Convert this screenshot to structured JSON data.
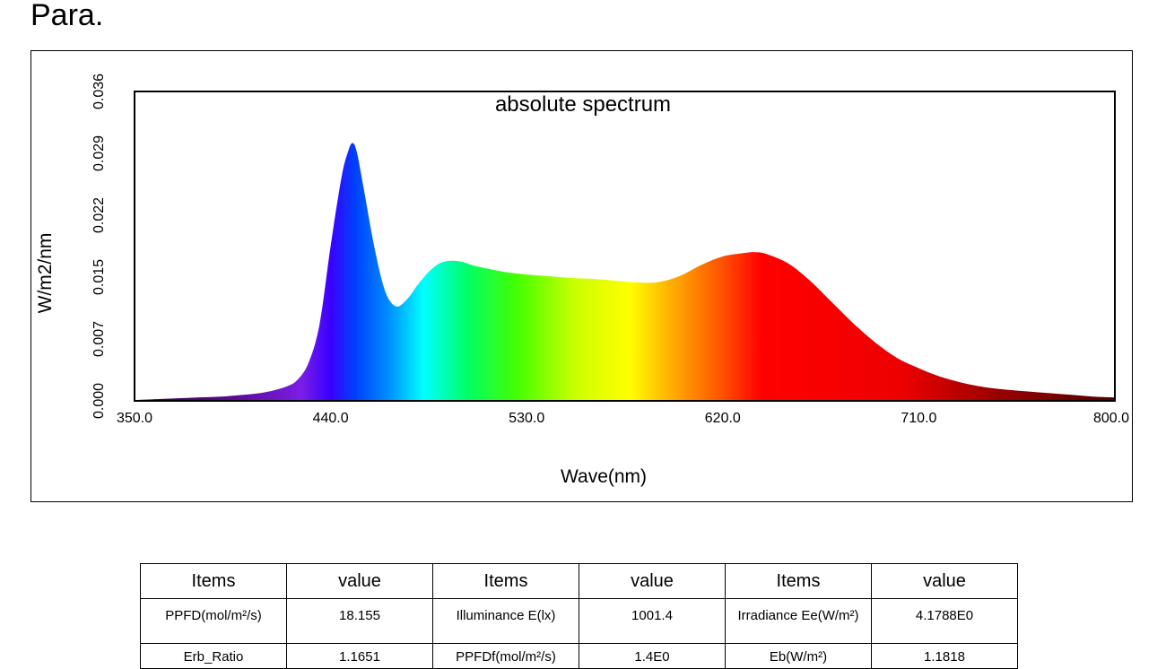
{
  "page": {
    "title": "Para."
  },
  "chart_data": {
    "type": "area",
    "title": "absolute spectrum",
    "xlabel": "Wave(nm)",
    "ylabel": "W/m2/nm",
    "xlim": [
      350,
      800
    ],
    "ylim": [
      0,
      0.036
    ],
    "x_ticks": [
      "350.0",
      "440.0",
      "530.0",
      "620.0",
      "710.0",
      "800.0"
    ],
    "y_ticks": [
      "0.000",
      "0.007",
      "0.015",
      "0.022",
      "0.029",
      "0.036"
    ],
    "grid": false,
    "fill": "visible-spectrum gradient",
    "x": [
      350,
      360,
      370,
      380,
      390,
      400,
      410,
      420,
      425,
      430,
      435,
      440,
      445,
      448,
      450,
      452,
      455,
      460,
      465,
      470,
      475,
      480,
      485,
      490,
      495,
      500,
      505,
      510,
      520,
      530,
      540,
      550,
      560,
      570,
      580,
      590,
      600,
      610,
      620,
      630,
      635,
      640,
      650,
      660,
      670,
      680,
      690,
      700,
      710,
      720,
      730,
      740,
      750,
      760,
      770,
      780,
      790,
      800
    ],
    "y": [
      0.0001,
      0.0002,
      0.0003,
      0.0004,
      0.0005,
      0.0007,
      0.001,
      0.0017,
      0.0025,
      0.0045,
      0.009,
      0.018,
      0.026,
      0.029,
      0.03,
      0.029,
      0.025,
      0.018,
      0.0128,
      0.011,
      0.0118,
      0.0135,
      0.015,
      0.016,
      0.0163,
      0.0162,
      0.0158,
      0.0155,
      0.015,
      0.0147,
      0.0145,
      0.0143,
      0.0142,
      0.014,
      0.0138,
      0.0138,
      0.0145,
      0.0158,
      0.0168,
      0.0172,
      0.0173,
      0.0171,
      0.016,
      0.014,
      0.0115,
      0.009,
      0.0068,
      0.005,
      0.0038,
      0.0028,
      0.0021,
      0.0016,
      0.0013,
      0.0011,
      0.0009,
      0.0007,
      0.0005,
      0.0004
    ]
  },
  "table": {
    "headers": [
      "Items",
      "value",
      "Items",
      "value",
      "Items",
      "value"
    ],
    "rows": [
      [
        "PPFD(mol/m²/s)",
        "18.155",
        "Illuminance E(lx)",
        "1001.4",
        "Irradiance Ee(W/m²)",
        "4.1788E0"
      ],
      [
        "Erb_Ratio",
        "1.1651",
        "PPFDf(mol/m²/s)",
        "1.4E0",
        "Eb(W/m²)",
        "1.1818"
      ]
    ]
  }
}
